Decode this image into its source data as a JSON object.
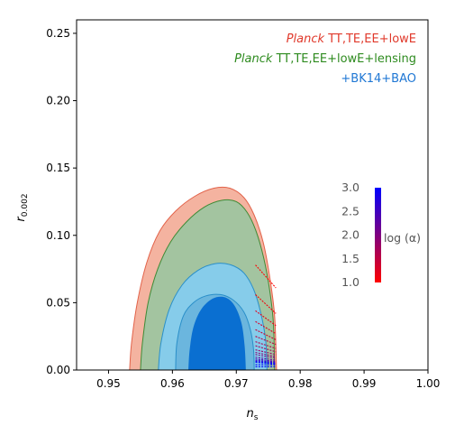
{
  "chart_data": {
    "type": "contour",
    "xlabel_main": "n",
    "xlabel_sub": "s",
    "ylabel_main": "r",
    "ylabel_sub": "0.002",
    "xlim": [
      0.945,
      1.0
    ],
    "ylim": [
      0.0,
      0.26
    ],
    "x_ticks": [
      0.95,
      0.96,
      0.97,
      0.98,
      0.99,
      1.0
    ],
    "x_tick_labels": [
      "0.95",
      "0.96",
      "0.97",
      "0.98",
      "0.99",
      "1.00"
    ],
    "y_ticks": [
      0.0,
      0.05,
      0.1,
      0.15,
      0.2,
      0.25
    ],
    "y_tick_labels": [
      "0.00",
      "0.05",
      "0.10",
      "0.15",
      "0.20",
      "0.25"
    ],
    "legend": [
      {
        "italic": "Planck",
        "text": " TT,TE,EE+lowE",
        "color": "#e0392b"
      },
      {
        "italic": "Planck",
        "text": " TT,TE,EE+lowE+lensing",
        "color": "#2e8b1f"
      },
      {
        "italic": "",
        "text": "+BK14+BAO",
        "color": "#1f77d4"
      }
    ],
    "series": [
      {
        "name": "Planck TT,TE,EE+lowE",
        "fill_outer": "#f4b3a0",
        "fill_inner": "#ec8f76",
        "edge": "#e2634a",
        "outer_95": [
          [
            0.9533,
            0.0
          ],
          [
            0.9536,
            0.02
          ],
          [
            0.9545,
            0.05
          ],
          [
            0.956,
            0.08
          ],
          [
            0.958,
            0.103
          ],
          [
            0.9605,
            0.118
          ],
          [
            0.9635,
            0.129
          ],
          [
            0.9665,
            0.135
          ],
          [
            0.969,
            0.135
          ],
          [
            0.9712,
            0.128
          ],
          [
            0.9728,
            0.115
          ],
          [
            0.9742,
            0.095
          ],
          [
            0.9752,
            0.07
          ],
          [
            0.976,
            0.04
          ],
          [
            0.9763,
            0.0
          ]
        ]
      },
      {
        "name": "Planck TT,TE,EE+lowE+lensing",
        "fill_outer": "#a3c4a0",
        "fill_inner": "#7fab79",
        "edge": "#3f8a35",
        "outer_95": [
          [
            0.955,
            0.0
          ],
          [
            0.9553,
            0.02
          ],
          [
            0.9562,
            0.05
          ],
          [
            0.9577,
            0.075
          ],
          [
            0.9597,
            0.095
          ],
          [
            0.9622,
            0.11
          ],
          [
            0.965,
            0.121
          ],
          [
            0.9677,
            0.126
          ],
          [
            0.97,
            0.125
          ],
          [
            0.9717,
            0.117
          ],
          [
            0.9731,
            0.103
          ],
          [
            0.9743,
            0.083
          ],
          [
            0.9752,
            0.06
          ],
          [
            0.9758,
            0.035
          ],
          [
            0.976,
            0.0
          ]
        ]
      },
      {
        "name": "+BK14+BAO",
        "fill_outer": "#86ccea",
        "fill_inner": "#0a6fd1",
        "edge": "#2a8fc9",
        "outer_95": [
          [
            0.9578,
            0.0
          ],
          [
            0.9582,
            0.02
          ],
          [
            0.9595,
            0.045
          ],
          [
            0.9615,
            0.063
          ],
          [
            0.964,
            0.074
          ],
          [
            0.9667,
            0.079
          ],
          [
            0.9692,
            0.078
          ],
          [
            0.9712,
            0.072
          ],
          [
            0.9727,
            0.06
          ],
          [
            0.9738,
            0.043
          ],
          [
            0.9746,
            0.022
          ],
          [
            0.9748,
            0.0
          ]
        ],
        "inner_68": [
          [
            0.9625,
            0.0
          ],
          [
            0.9627,
            0.015
          ],
          [
            0.9633,
            0.032
          ],
          [
            0.9645,
            0.045
          ],
          [
            0.9663,
            0.053
          ],
          [
            0.9682,
            0.054
          ],
          [
            0.9697,
            0.048
          ],
          [
            0.9708,
            0.035
          ],
          [
            0.9713,
            0.018
          ],
          [
            0.9715,
            0.0
          ]
        ]
      }
    ],
    "light_blue_inner_68": [
      [
        0.9605,
        0.0
      ],
      [
        0.9607,
        0.02
      ],
      [
        0.9617,
        0.04
      ],
      [
        0.9633,
        0.05
      ],
      [
        0.9652,
        0.055
      ],
      [
        0.9675,
        0.056
      ],
      [
        0.9695,
        0.052
      ],
      [
        0.9712,
        0.043
      ],
      [
        0.9722,
        0.03
      ],
      [
        0.9727,
        0.015
      ],
      [
        0.9728,
        0.0
      ]
    ],
    "model_lines": {
      "description": "colored line segments, color mapped to log(alpha)",
      "segments": [
        {
          "logalpha": 1.0,
          "x1": 0.973,
          "y1": 0.078,
          "x2": 0.9762,
          "y2": 0.061
        },
        {
          "logalpha": 1.1,
          "x1": 0.973,
          "y1": 0.056,
          "x2": 0.9762,
          "y2": 0.042
        },
        {
          "logalpha": 1.2,
          "x1": 0.973,
          "y1": 0.044,
          "x2": 0.9762,
          "y2": 0.033
        },
        {
          "logalpha": 1.3,
          "x1": 0.973,
          "y1": 0.036,
          "x2": 0.9762,
          "y2": 0.027
        },
        {
          "logalpha": 1.4,
          "x1": 0.973,
          "y1": 0.03,
          "x2": 0.9762,
          "y2": 0.0225
        },
        {
          "logalpha": 1.5,
          "x1": 0.973,
          "y1": 0.025,
          "x2": 0.9762,
          "y2": 0.019
        },
        {
          "logalpha": 1.6,
          "x1": 0.973,
          "y1": 0.021,
          "x2": 0.9762,
          "y2": 0.016
        },
        {
          "logalpha": 1.7,
          "x1": 0.973,
          "y1": 0.018,
          "x2": 0.9762,
          "y2": 0.0135
        },
        {
          "logalpha": 1.8,
          "x1": 0.973,
          "y1": 0.015,
          "x2": 0.9762,
          "y2": 0.0115
        },
        {
          "logalpha": 1.9,
          "x1": 0.973,
          "y1": 0.013,
          "x2": 0.9762,
          "y2": 0.01
        },
        {
          "logalpha": 2.0,
          "x1": 0.973,
          "y1": 0.0115,
          "x2": 0.9762,
          "y2": 0.0088
        },
        {
          "logalpha": 2.2,
          "x1": 0.973,
          "y1": 0.0095,
          "x2": 0.9762,
          "y2": 0.0073
        },
        {
          "logalpha": 2.4,
          "x1": 0.973,
          "y1": 0.0082,
          "x2": 0.9762,
          "y2": 0.0063
        },
        {
          "logalpha": 2.6,
          "x1": 0.973,
          "y1": 0.0072,
          "x2": 0.9762,
          "y2": 0.0056
        },
        {
          "logalpha": 2.8,
          "x1": 0.973,
          "y1": 0.0064,
          "x2": 0.9762,
          "y2": 0.005
        },
        {
          "logalpha": 3.0,
          "x1": 0.973,
          "y1": 0.0058,
          "x2": 0.9762,
          "y2": 0.0045
        },
        {
          "logalpha": 3.0,
          "x1": 0.973,
          "y1": 0.004,
          "x2": 0.9762,
          "y2": 0.004
        },
        {
          "logalpha": 3.0,
          "x1": 0.973,
          "y1": 0.0025,
          "x2": 0.9762,
          "y2": 0.0025
        }
      ]
    },
    "colorbar": {
      "label": "log (α)",
      "range": [
        1.0,
        3.0
      ],
      "ticks": [
        1.0,
        1.5,
        2.0,
        2.5,
        3.0
      ],
      "tick_labels": [
        "1.0",
        "1.5",
        "2.0",
        "2.5",
        "3.0"
      ],
      "color_low": "#ff0000",
      "color_high": "#0000ff"
    }
  }
}
